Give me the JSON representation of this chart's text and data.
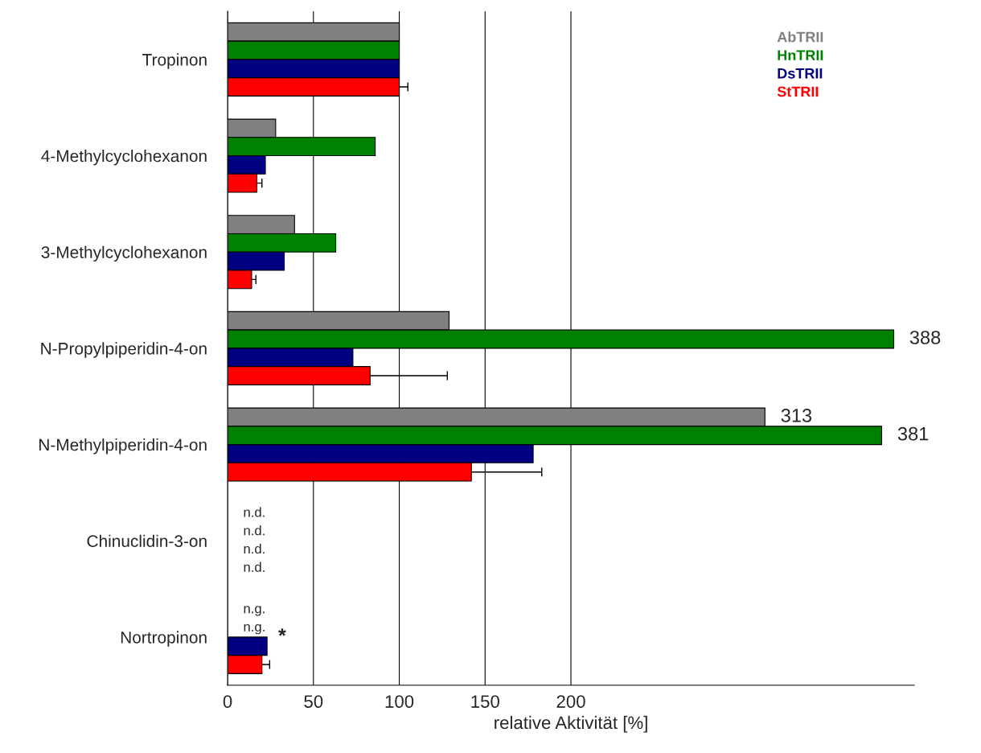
{
  "chart_data": {
    "type": "bar",
    "orientation": "horizontal",
    "xlabel": "relative Aktivität [%]",
    "categories": [
      "Tropinon",
      "4-Methylcyclohexanon",
      "3-Methylcyclohexanon",
      "N-Propylpiperidin-4-on",
      "N-Methylpiperidin-4-on",
      "Chinuclidin-3-on",
      "Nortropinon"
    ],
    "series": [
      {
        "name": "AbTRII",
        "color": "#808080",
        "values": [
          100,
          28,
          39,
          129,
          313,
          null,
          null
        ],
        "value_labels": [
          null,
          null,
          null,
          null,
          "313",
          "n.d.",
          "n.g."
        ]
      },
      {
        "name": "HnTRII",
        "color": "#008000",
        "values": [
          100,
          86,
          63,
          388,
          381,
          null,
          null
        ],
        "value_labels": [
          null,
          null,
          null,
          "388",
          "381",
          "n.d.",
          "n.g."
        ]
      },
      {
        "name": "DsTRII",
        "color": "#000080",
        "values": [
          100,
          22,
          33,
          73,
          178,
          null,
          23
        ],
        "value_labels": [
          null,
          null,
          null,
          null,
          null,
          "n.d.",
          null
        ]
      },
      {
        "name": "StTRII",
        "color": "#ff0000",
        "values": [
          100,
          17,
          14,
          83,
          142,
          null,
          20
        ],
        "value_labels": [
          null,
          null,
          null,
          null,
          null,
          "n.d.",
          null
        ],
        "errors": [
          5,
          3,
          2.5,
          45,
          41,
          null,
          4.5
        ]
      }
    ],
    "xlim": [
      0,
      400
    ],
    "xticks": [
      0,
      50,
      100,
      150,
      200
    ],
    "grid": "x",
    "legend": "top right",
    "annotations": [
      {
        "text": "*",
        "x": 23,
        "y": "Nortropinon"
      }
    ]
  }
}
